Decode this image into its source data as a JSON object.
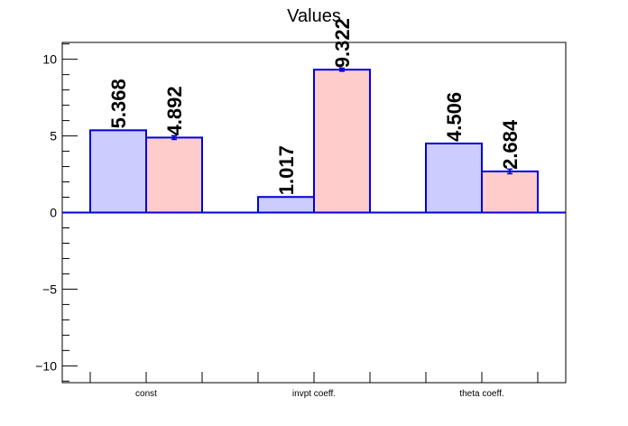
{
  "chart_data": {
    "type": "bar",
    "title": "Values",
    "categories": [
      "const",
      "invpt coeff.",
      "theta coeff."
    ],
    "series": [
      {
        "values": [
          5.368,
          1.017,
          4.506
        ],
        "labels": [
          "5.368",
          "1.017",
          "4.506"
        ],
        "color": "#ccccff"
      },
      {
        "values": [
          4.892,
          9.322,
          2.684
        ],
        "labels": [
          "4.892",
          "9.322",
          "2.684"
        ],
        "color": "#ffcccc",
        "errors": [
          0.12,
          0.1,
          0.15
        ]
      }
    ],
    "ylim": [
      -11.1,
      11.1
    ],
    "yticks": [
      -10,
      -5,
      0,
      5,
      10
    ],
    "ytick_labels": [
      "−10",
      "−5",
      "0",
      "5",
      "10"
    ],
    "edge_color": "#0000dd",
    "xlabel": "",
    "ylabel": "",
    "grid": false
  }
}
